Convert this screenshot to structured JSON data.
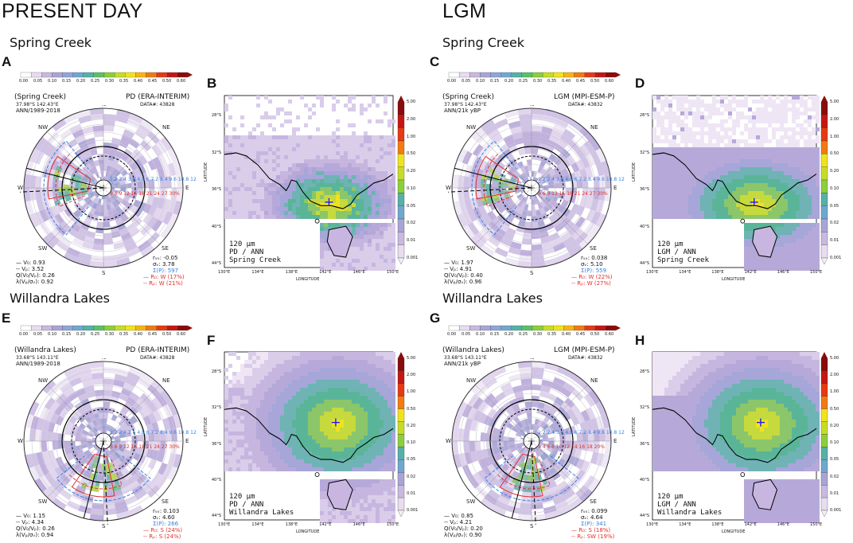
{
  "headers": {
    "left": "PRESENT DAY",
    "right": "LGM"
  },
  "colorbar_ticks": [
    "0.00",
    "0.05",
    "0.10",
    "0.15",
    "0.20",
    "0.25",
    "0.30",
    "0.35",
    "0.40",
    "0.45",
    "0.50",
    "0.60"
  ],
  "map_colorbar_ticks": [
    "5.00",
    "2.00",
    "1.00",
    "0.50",
    "0.20",
    "0.10",
    "0.05",
    "0.02",
    "0.01",
    "0.001"
  ],
  "lon_ticks": [
    "130°E",
    "134°E",
    "138°E",
    "142°E",
    "146°E",
    "150°E"
  ],
  "lat_ticks": [
    "28°S",
    "32°S",
    "36°S",
    "40°S",
    "44°S"
  ],
  "axis": {
    "xlabel": "LONGITUDE",
    "ylabel": "LATITUDE"
  },
  "compass": {
    "n": "N",
    "ne": "NE",
    "e": "E",
    "se": "SE",
    "s": "S",
    "sw": "SW",
    "w": "W",
    "nw": "NW"
  },
  "speed_ticks": "1.2 2.4 3.6 4.8 6 7.2 8.4 9.6 10.8 12",
  "rows": [
    {
      "site": "Spring Creek",
      "panels": [
        {
          "letter": "A",
          "title_left": "(Spring Creek)",
          "title_right": "PD (ERA-INTERIM)",
          "coords": "37.98°S 142.43°E",
          "period": "ANN/1989-2018",
          "data_n": "DATA#: 43828",
          "stats_left": [
            "— V₀: 0.93",
            "-- Vₚ: 3.52",
            "Q(V₀/Vₚ): 0.26",
            "λ(Vₚ/σᵥ): 0.92"
          ],
          "stats_right": [
            "rᵥᵥ: -0.05",
            "σᵥ: 3.78",
            "Σ(P): 597"
          ],
          "stats_red": [
            "— R₀: W (17%)",
            "-- Rₚ: W (21%)"
          ],
          "pct_ticks": "3 6 9 12 15 18 21 24 27 30%"
        },
        {
          "letter": "B",
          "cap": [
            "120 μm",
            "PD / ANN",
            "Spring Creek"
          ]
        },
        {
          "letter": "C",
          "title_left": "(Spring Creek)",
          "title_right": "LGM (MPI-ESM-P)",
          "coords": "37.98°S 142.43°E",
          "period": "ANN/21k yBP",
          "data_n": "DATA#: 43832",
          "stats_left": [
            "— V₀: 1.97",
            "-- Vₚ: 4.91",
            "Q(V₀/Vₚ): 0.40",
            "λ(Vₚ/σᵥ): 0.96"
          ],
          "stats_right": [
            "rᵥᵥ: 0.038",
            "σᵥ: 5.10",
            "Σ(P): 559"
          ],
          "stats_red": [
            "— R₀: W (22%)",
            "-- Rₚ: W (27%)"
          ],
          "pct_ticks": "3 6 9 12 15 18 21 24 27 30%"
        },
        {
          "letter": "D",
          "cap": [
            "120 μm",
            "LGM / ANN",
            "Spring Creek"
          ]
        }
      ]
    },
    {
      "site": "Willandra Lakes",
      "panels": [
        {
          "letter": "E",
          "title_left": "(Willandra Lakes)",
          "title_right": "PD (ERA-INTERIM)",
          "coords": "33.68°S 143.11°E",
          "period": "ANN/1989-2018",
          "data_n": "DATA#: 43828",
          "stats_left": [
            "— V₀: 1.15",
            "-- Vₚ: 4.34",
            "Q(V₀/Vₚ): 0.26",
            "λ(Vₚ/σᵥ): 0.94"
          ],
          "stats_right": [
            "rᵥᵥ: 0.103",
            "σᵥ: 4.60",
            "Σ(P): 266"
          ],
          "stats_red": [
            "— R₀: S (24%)",
            "-- Rₚ: S (24%)"
          ],
          "pct_ticks": "3 6 9 12 15 18 21 24 27 30%"
        },
        {
          "letter": "F",
          "cap": [
            "120 μm",
            "PD / ANN",
            "Willandra Lakes"
          ]
        },
        {
          "letter": "G",
          "title_left": "(Willandra Lakes)",
          "title_right": "LGM (MPI-ESM-P)",
          "coords": "33.68°S 143.11°E",
          "period": "ANN/21k yBP",
          "data_n": "DATA#: 43832",
          "stats_left": [
            "— V₀: 0.85",
            "-- Vₚ: 4.21",
            "Q(V₀/Vₚ): 0.20",
            "λ(Vₚ/σᵥ): 0.90"
          ],
          "stats_right": [
            "rᵥᵥ: 0.099",
            "σᵥ: 4.64",
            "Σ(P): 341"
          ],
          "stats_red": [
            "— R₀: S (18%)",
            "-- Rₚ: SW (19%)"
          ],
          "pct_ticks": "2 4 6 8 10 12 14 16 18 20%"
        },
        {
          "letter": "H",
          "cap": [
            "120 μm",
            "LGM / ANN",
            "Willandra Lakes"
          ]
        }
      ]
    }
  ],
  "colors": {
    "blue": "#2f83e6",
    "red": "#e0302a",
    "land_base": "#b9a7d6",
    "coast": "#000000"
  }
}
